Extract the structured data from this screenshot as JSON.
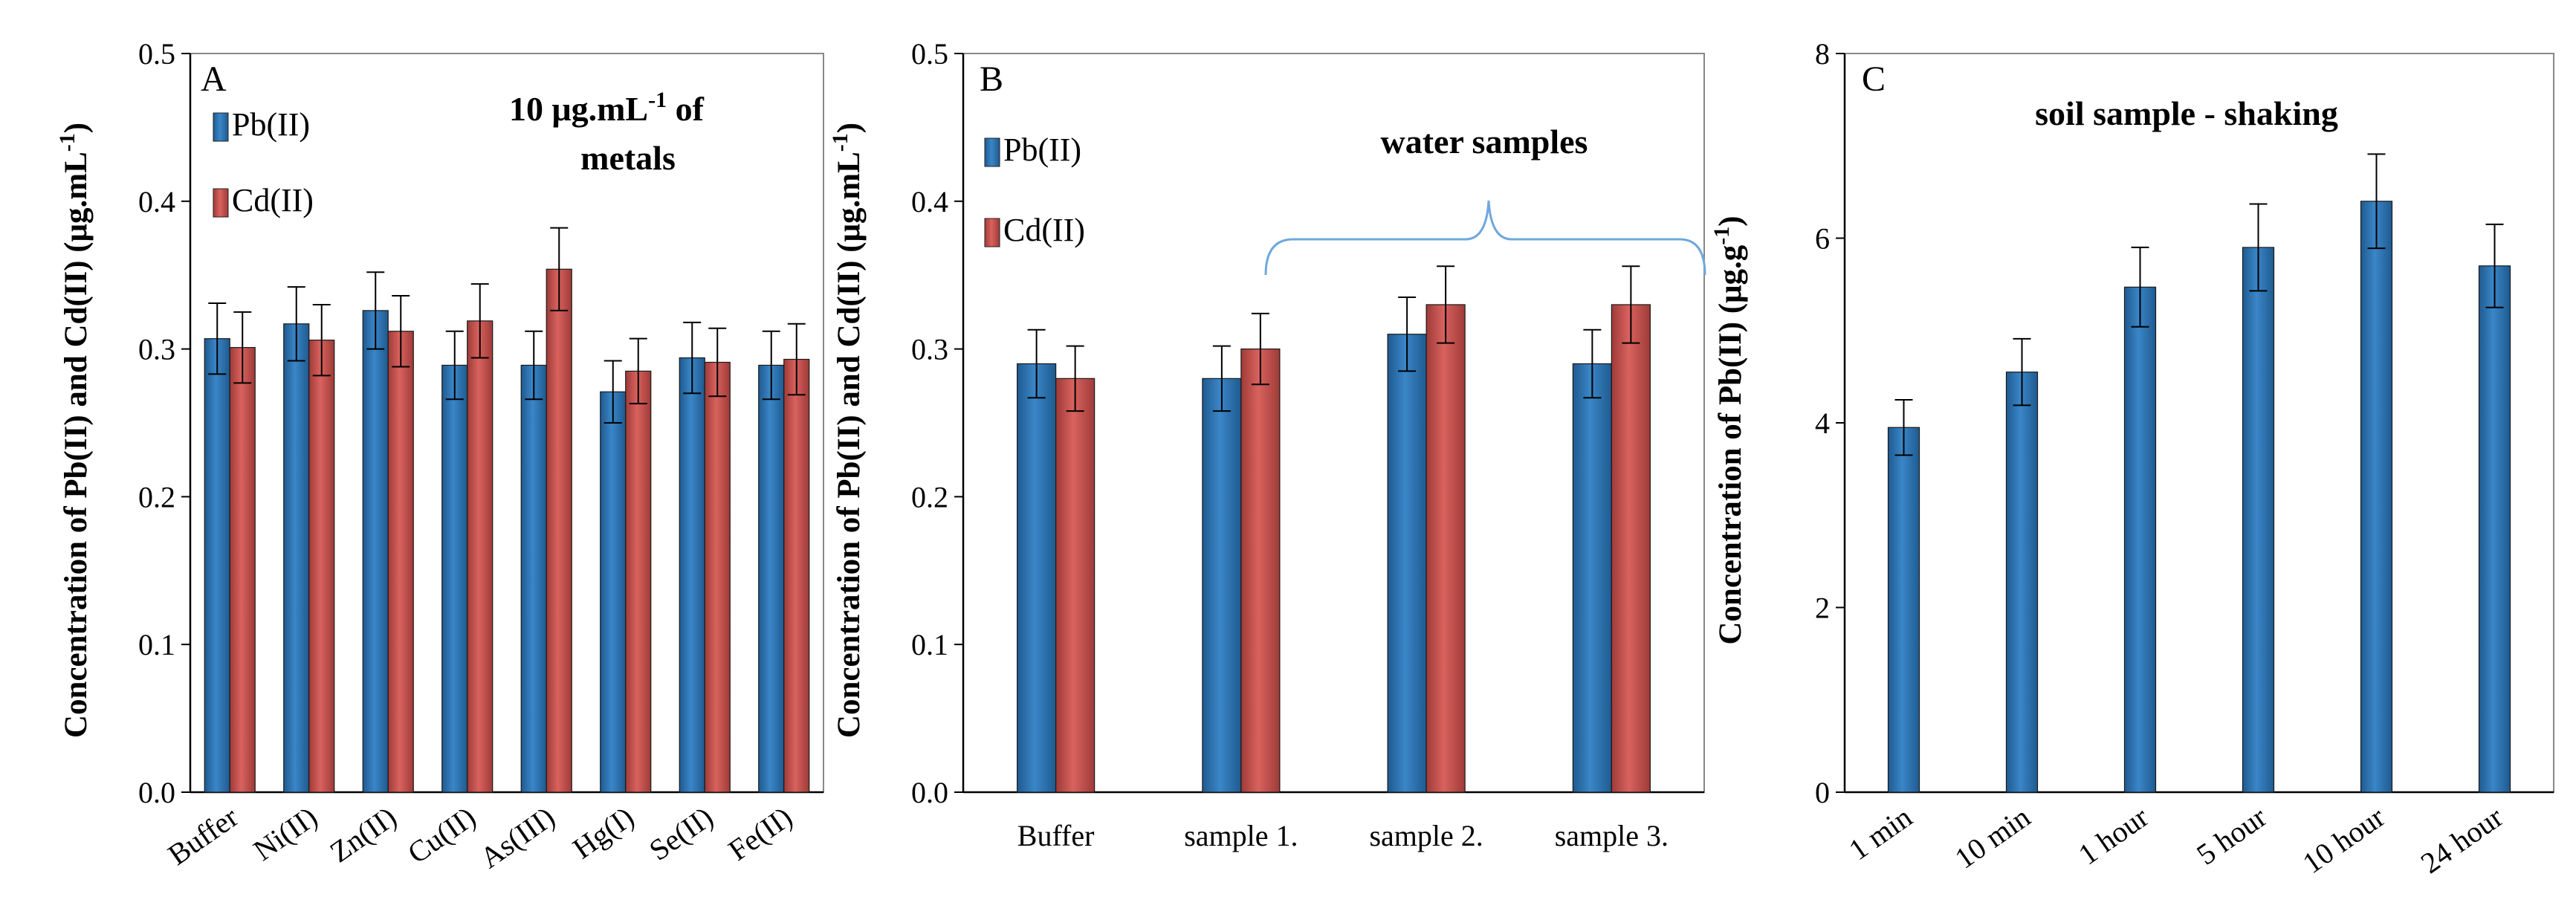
{
  "colors": {
    "pb": "#2e75b6",
    "cd": "#c0504d",
    "brace": "#6fa8dc"
  },
  "chart_data": [
    {
      "type": "bar",
      "panel": "A",
      "annotation": [
        "10 μg.mL",
        "-1",
        " of",
        "metals"
      ],
      "ylabel": [
        "Concentration of Pb(II) and Cd(II) (μg.mL",
        "-1",
        ")"
      ],
      "yticks": [
        "0.0",
        "0.1",
        "0.2",
        "0.3",
        "0.4",
        "0.5"
      ],
      "ylim": [
        0,
        0.5
      ],
      "categories": [
        "Buffer",
        "Ni(II)",
        "Zn(II)",
        "Cu(II)",
        "As(III)",
        "Hg(I)",
        "Se(II)",
        "Fe(II)"
      ],
      "series": [
        {
          "name": "Pb(II)",
          "values": [
            0.307,
            0.317,
            0.326,
            0.289,
            0.289,
            0.271,
            0.294,
            0.289
          ],
          "errors": [
            0.024,
            0.025,
            0.026,
            0.023,
            0.023,
            0.021,
            0.024,
            0.023
          ]
        },
        {
          "name": "Cd(II)",
          "values": [
            0.301,
            0.306,
            0.312,
            0.319,
            0.354,
            0.285,
            0.291,
            0.293
          ],
          "errors": [
            0.024,
            0.024,
            0.024,
            0.025,
            0.028,
            0.022,
            0.023,
            0.024
          ]
        }
      ]
    },
    {
      "type": "bar",
      "panel": "B",
      "annotation": [
        "water samples"
      ],
      "ylabel": [
        "Concentration of Pb(II) and Cd(II) (μg.mL",
        "-1",
        ")"
      ],
      "yticks": [
        "0.0",
        "0.1",
        "0.2",
        "0.3",
        "0.4",
        "0.5"
      ],
      "ylim": [
        0,
        0.5
      ],
      "categories": [
        "Buffer",
        "sample 1.",
        "sample 2.",
        "sample 3."
      ],
      "series": [
        {
          "name": "Pb(II)",
          "values": [
            0.29,
            0.28,
            0.31,
            0.29
          ],
          "errors": [
            0.023,
            0.022,
            0.025,
            0.023
          ]
        },
        {
          "name": "Cd(II)",
          "values": [
            0.28,
            0.3,
            0.33,
            0.33
          ],
          "errors": [
            0.022,
            0.024,
            0.026,
            0.026
          ]
        }
      ]
    },
    {
      "type": "bar",
      "panel": "C",
      "annotation": [
        "soil sample - shaking"
      ],
      "ylabel": [
        "Concentration of Pb(II) (μg.g",
        "-1",
        ")"
      ],
      "yticks": [
        "0",
        "2",
        "4",
        "6",
        "8"
      ],
      "ylim": [
        0,
        8
      ],
      "categories": [
        "1 min",
        "10 min",
        "1 hour",
        "5 hour",
        "10 hour",
        "24 hour"
      ],
      "series": [
        {
          "name": "Pb(II)",
          "values": [
            3.95,
            4.55,
            5.47,
            5.9,
            6.4,
            5.7
          ],
          "errors": [
            0.3,
            0.36,
            0.43,
            0.47,
            0.51,
            0.45
          ]
        }
      ]
    }
  ]
}
